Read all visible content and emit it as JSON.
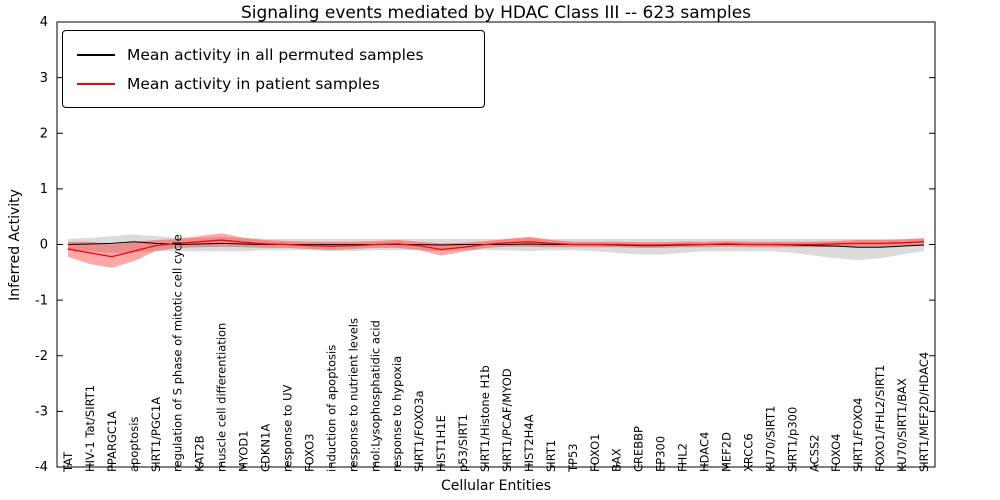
{
  "chart_data": {
    "type": "line",
    "title": "Signaling events mediated by HDAC Class III -- 623 samples",
    "xlabel": "Cellular Entities",
    "ylabel": "Inferred Activity",
    "ylim": [
      -4,
      4
    ],
    "yticks": [
      -4,
      -3,
      -2,
      -1,
      0,
      1,
      2,
      3,
      4
    ],
    "grid": false,
    "legend_position": "upper-left",
    "legend": [
      {
        "label": "Mean activity in all permuted samples",
        "color": "#000000"
      },
      {
        "label": "Mean activity in patient samples",
        "color": "#ff0000"
      }
    ],
    "categories": [
      "TAT",
      "HIV-1 Tat/SIRT1",
      "PPARGC1A",
      "apoptosis",
      "SIRT1/PGC1A",
      "regulation of S phase of mitotic cell cycle",
      "KAT2B",
      "muscle cell differentiation",
      "MYOD1",
      "CDKN1A",
      "response to UV",
      "FOXO3",
      "induction of apoptosis",
      "response to nutrient levels",
      "mol:Lysophosphatidic acid",
      "response to hypoxia",
      "SIRT1/FOXO3a",
      "HIST1H1E",
      "p53/SIRT1",
      "SIRT1/Histone H1b",
      "SIRT1/PCAF/MYOD",
      "HIST2H4A",
      "SIRT1",
      "TP53",
      "FOXO1",
      "BAX",
      "CREBBP",
      "EP300",
      "FHL2",
      "HDAC4",
      "MEF2D",
      "XRCC6",
      "KU70/SIRT1",
      "SIRT1/p300",
      "ACSS2",
      "FOXO4",
      "SIRT1/FOXO4",
      "FOXO1/FHL2/SIRT1",
      "KU70/SIRT1/BAX",
      "SIRT1/MEF2D/HDAC4"
    ],
    "series": [
      {
        "key": "permuted",
        "name": "Mean activity in all permuted samples",
        "color": "#000000",
        "line_width": 1,
        "band_color": "#888888",
        "band_opacity": 0.3,
        "values": [
          0.0,
          0.01,
          0.02,
          0.05,
          0.02,
          0.0,
          0.01,
          0.02,
          0.01,
          0.0,
          0.0,
          0.0,
          0.0,
          0.0,
          0.0,
          0.0,
          0.0,
          -0.01,
          0.0,
          0.0,
          0.0,
          0.01,
          0.0,
          0.0,
          0.0,
          -0.01,
          -0.02,
          -0.02,
          -0.01,
          0.0,
          0.0,
          0.0,
          0.0,
          -0.01,
          -0.02,
          -0.03,
          -0.05,
          -0.05,
          -0.03,
          -0.01
        ],
        "band_upper": [
          0.1,
          0.12,
          0.15,
          0.18,
          0.15,
          0.12,
          0.12,
          0.14,
          0.12,
          0.1,
          0.1,
          0.1,
          0.1,
          0.1,
          0.1,
          0.1,
          0.1,
          0.1,
          0.1,
          0.1,
          0.1,
          0.12,
          0.1,
          0.1,
          0.1,
          0.1,
          0.1,
          0.1,
          0.1,
          0.1,
          0.1,
          0.1,
          0.1,
          0.1,
          0.1,
          0.1,
          0.1,
          0.1,
          0.1,
          0.1
        ],
        "band_lower": [
          -0.1,
          -0.12,
          -0.15,
          -0.15,
          -0.12,
          -0.12,
          -0.12,
          -0.12,
          -0.12,
          -0.1,
          -0.1,
          -0.1,
          -0.12,
          -0.12,
          -0.1,
          -0.1,
          -0.1,
          -0.12,
          -0.1,
          -0.1,
          -0.1,
          -0.12,
          -0.1,
          -0.1,
          -0.12,
          -0.15,
          -0.18,
          -0.18,
          -0.15,
          -0.12,
          -0.12,
          -0.12,
          -0.12,
          -0.15,
          -0.2,
          -0.25,
          -0.28,
          -0.25,
          -0.18,
          -0.12
        ]
      },
      {
        "key": "patient",
        "name": "Mean activity in patient samples",
        "color": "#ff0000",
        "line_width": 1.3,
        "band_color": "#ff0000",
        "band_opacity": 0.35,
        "values": [
          -0.08,
          -0.15,
          -0.22,
          -0.12,
          -0.02,
          0.02,
          0.05,
          0.08,
          0.04,
          0.01,
          0.0,
          -0.02,
          -0.03,
          -0.02,
          0.0,
          0.01,
          -0.02,
          -0.09,
          -0.05,
          0.0,
          0.03,
          0.05,
          0.02,
          0.0,
          0.0,
          0.0,
          -0.01,
          -0.01,
          0.0,
          0.0,
          0.01,
          0.0,
          0.0,
          0.0,
          0.0,
          0.01,
          0.02,
          0.02,
          0.03,
          0.05
        ],
        "band_upper": [
          0.05,
          0.05,
          0.0,
          0.05,
          0.08,
          0.1,
          0.15,
          0.2,
          0.12,
          0.08,
          0.06,
          0.05,
          0.05,
          0.05,
          0.06,
          0.08,
          0.05,
          0.02,
          0.03,
          0.06,
          0.1,
          0.14,
          0.08,
          0.05,
          0.05,
          0.05,
          0.04,
          0.04,
          0.05,
          0.05,
          0.06,
          0.05,
          0.05,
          0.05,
          0.05,
          0.06,
          0.08,
          0.08,
          0.09,
          0.12
        ],
        "band_lower": [
          -0.22,
          -0.35,
          -0.42,
          -0.3,
          -0.12,
          -0.06,
          -0.05,
          -0.04,
          -0.05,
          -0.06,
          -0.06,
          -0.08,
          -0.1,
          -0.08,
          -0.06,
          -0.06,
          -0.1,
          -0.2,
          -0.13,
          -0.06,
          -0.04,
          -0.04,
          -0.05,
          -0.05,
          -0.05,
          -0.05,
          -0.06,
          -0.06,
          -0.05,
          -0.05,
          -0.04,
          -0.05,
          -0.05,
          -0.05,
          -0.05,
          -0.04,
          -0.04,
          -0.04,
          -0.03,
          -0.02
        ]
      }
    ]
  }
}
